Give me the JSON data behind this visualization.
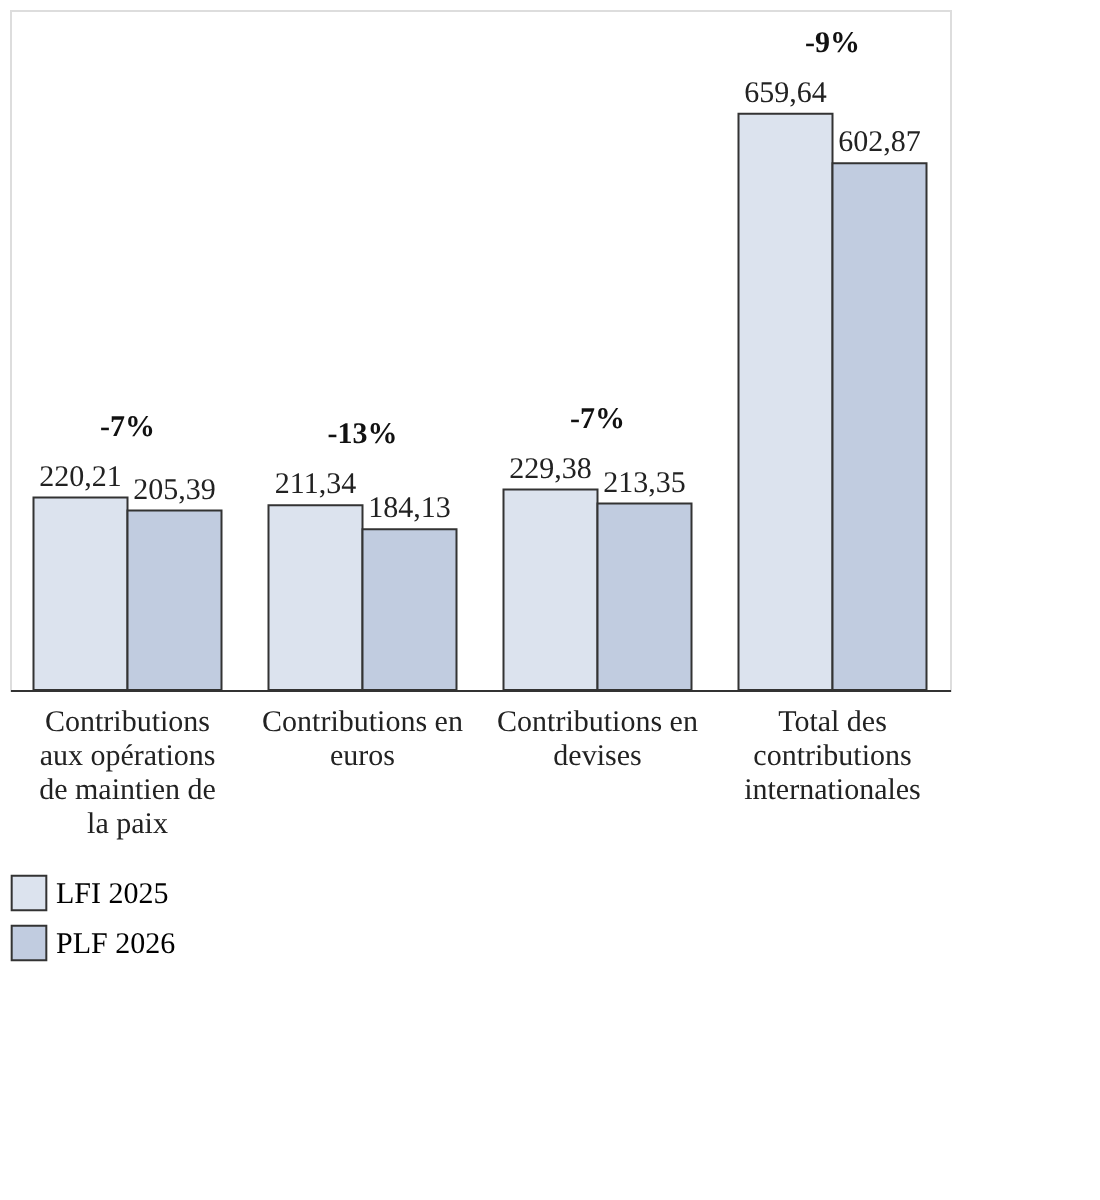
{
  "chart_data": {
    "type": "bar",
    "categories": [
      "Contributions aux opérations de maintien de la paix",
      "Contributions en euros",
      "Contributions en devises",
      "Total des contributions internationales"
    ],
    "series": [
      {
        "name": "LFI 2025",
        "color": "#dce3ee",
        "values": [
          220.21,
          211.34,
          229.38,
          659.64
        ],
        "value_labels": [
          "220,21",
          "211,34",
          "229,38",
          "659,64"
        ]
      },
      {
        "name": "PLF 2026",
        "color": "#c1cce0",
        "values": [
          205.39,
          184.13,
          213.35,
          602.87
        ],
        "value_labels": [
          "205,39",
          "184,13",
          "213,35",
          "602,87"
        ]
      }
    ],
    "annotations": [
      "-7%",
      "-13%",
      "-7%",
      "-9%"
    ],
    "legend": "bottom left"
  }
}
